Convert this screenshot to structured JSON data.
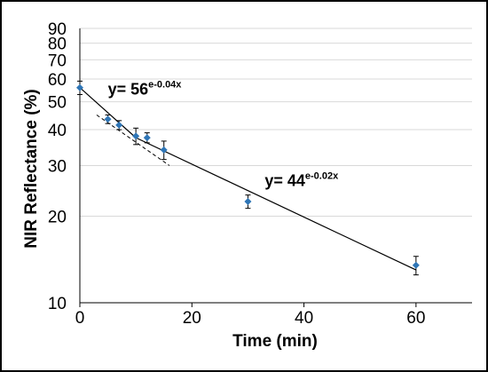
{
  "chart_data": {
    "type": "scatter",
    "xlabel": "Time (min)",
    "ylabel": "NIR Reflectance (%)",
    "xlim": [
      0,
      70
    ],
    "ylim": [
      10,
      90
    ],
    "y_scale": "log",
    "x_ticks": [
      0,
      20,
      40,
      60
    ],
    "y_ticks": [
      10,
      20,
      30,
      40,
      50,
      60,
      70,
      80,
      90
    ],
    "grid": "horizontal",
    "series": [
      {
        "marker_color": "#2e75b6",
        "points": [
          {
            "x": 0,
            "y": 56,
            "err": 3
          },
          {
            "x": 5,
            "y": 43.5,
            "err": 1.5
          },
          {
            "x": 7,
            "y": 41.5,
            "err": 1.5
          },
          {
            "x": 10,
            "y": 38,
            "err": 2.5
          },
          {
            "x": 12,
            "y": 37.5,
            "err": 1.5
          },
          {
            "x": 15,
            "y": 34,
            "err": 2.5
          },
          {
            "x": 30,
            "y": 22.5,
            "err": 1.2
          },
          {
            "x": 60,
            "y": 13.5,
            "err": 1
          }
        ]
      }
    ],
    "trendlines": [
      {
        "style": "solid",
        "x": [
          0,
          10
        ],
        "y": [
          56,
          37.5
        ]
      },
      {
        "style": "solid",
        "x": [
          10,
          60
        ],
        "y": [
          37.5,
          13
        ]
      },
      {
        "style": "dashed",
        "x": [
          3,
          16
        ],
        "y": [
          45,
          30
        ]
      }
    ],
    "annotations": [
      {
        "base": "y= 56",
        "exponent": "e-0.04x",
        "at_x": 5,
        "at_y": 53
      },
      {
        "base": "y= 44",
        "exponent": "e-0.02x",
        "at_x": 33,
        "at_y": 25.5
      }
    ]
  }
}
